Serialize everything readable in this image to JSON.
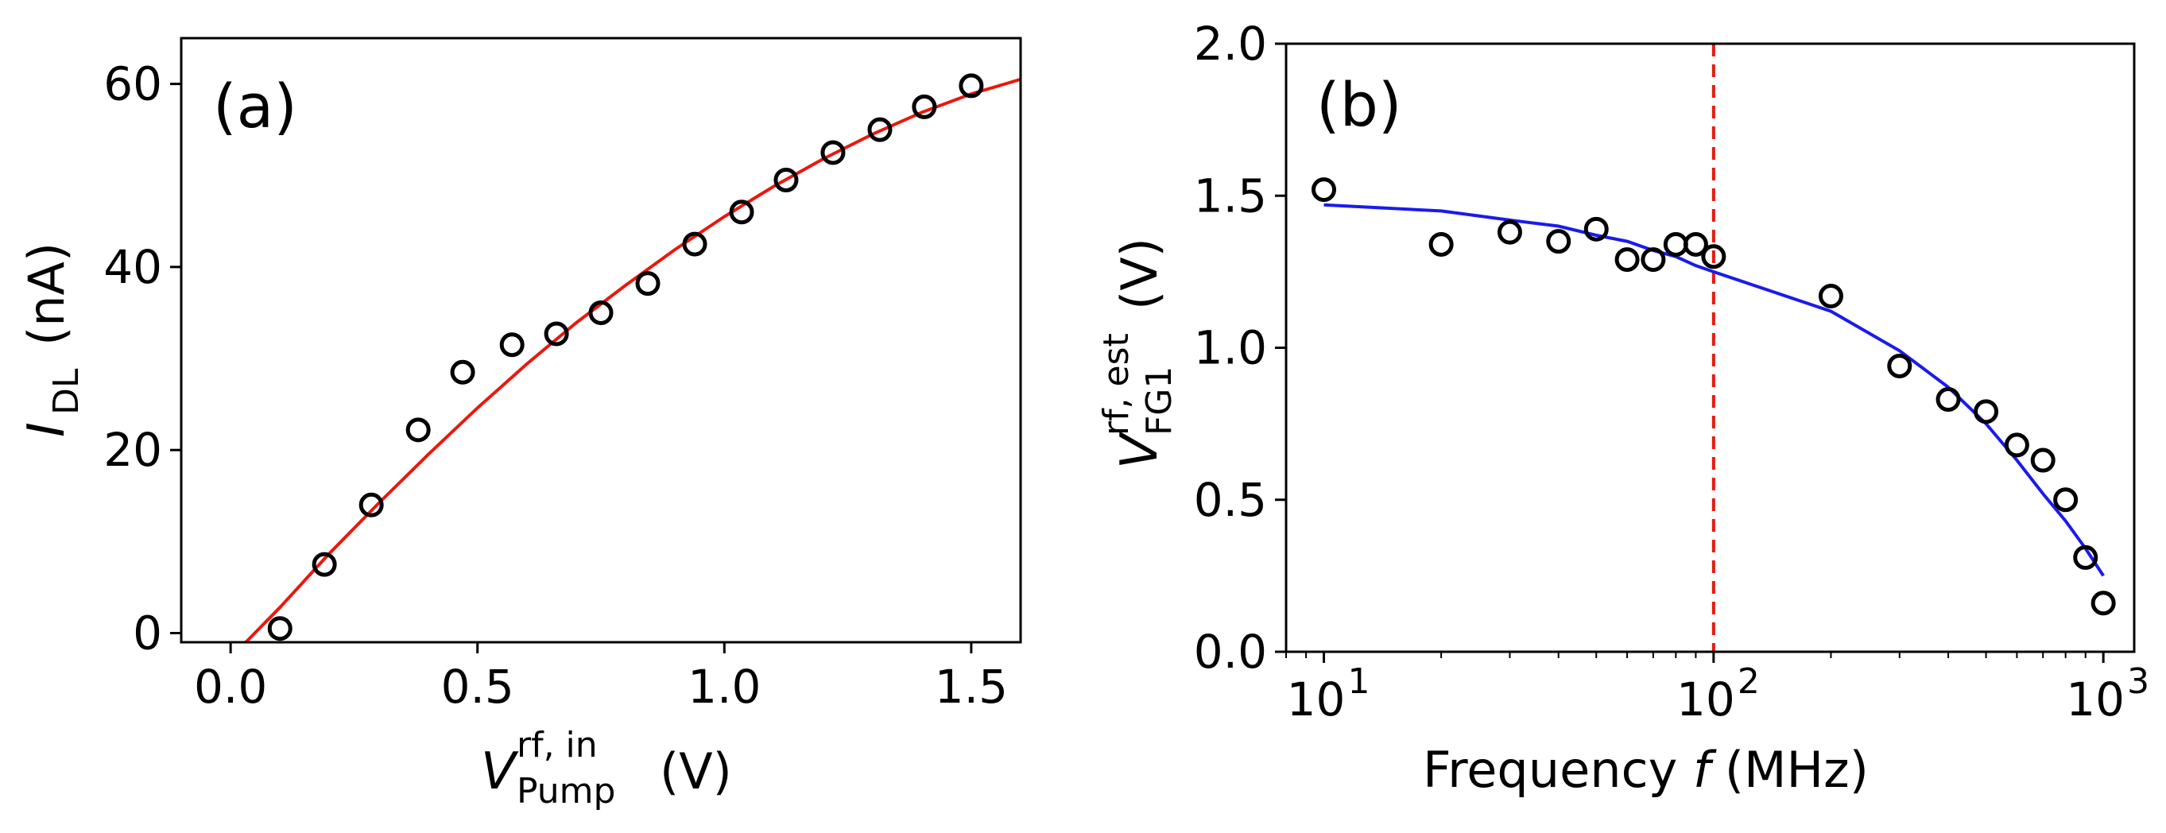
{
  "chart_data": [
    {
      "panel_label": "(a)",
      "type": "scatter",
      "xlabel": {
        "main": "V",
        "sup": "rf, in",
        "sub": "Pump",
        "unit": "(V)"
      },
      "ylabel": {
        "main": "I",
        "sub": "DL",
        "unit": "(nA)"
      },
      "xlim": [
        -0.1,
        1.6
      ],
      "ylim": [
        -1,
        65
      ],
      "xticks": [
        0.0,
        0.5,
        1.0,
        1.5
      ],
      "xtick_labels": [
        "0.0",
        "0.5",
        "1.0",
        "1.5"
      ],
      "yticks": [
        0,
        20,
        40,
        60
      ],
      "ytick_labels": [
        "0",
        "20",
        "40",
        "60"
      ],
      "points": {
        "x": [
          0.1,
          0.19,
          0.285,
          0.38,
          0.47,
          0.57,
          0.66,
          0.75,
          0.845,
          0.94,
          1.035,
          1.125,
          1.22,
          1.315,
          1.405,
          1.5
        ],
        "y": [
          0.5,
          7.5,
          14,
          22.2,
          28.5,
          31.5,
          32.7,
          35,
          38.2,
          42.5,
          46,
          49.5,
          52.5,
          55,
          57.5,
          59.8
        ]
      },
      "fit": {
        "color": "#e8190e",
        "x": [
          0.02,
          0.1,
          0.2,
          0.3,
          0.4,
          0.5,
          0.6,
          0.7,
          0.8,
          0.9,
          1.0,
          1.1,
          1.2,
          1.3,
          1.4,
          1.5,
          1.6
        ],
        "y": [
          -1.6,
          2.8,
          8.7,
          14.2,
          19.5,
          24.6,
          29.4,
          33.9,
          38.0,
          41.9,
          45.5,
          48.8,
          51.8,
          54.5,
          56.9,
          58.9,
          60.5
        ]
      }
    },
    {
      "panel_label": "(b)",
      "type": "scatter",
      "xscale": "log",
      "xlabel": {
        "main": "Frequency ",
        "italic": "f",
        "unit": "(MHz)"
      },
      "ylabel": {
        "main": "V",
        "sup": "rf, est",
        "sub": "FG1",
        "unit": "(V)"
      },
      "xlim": [
        8,
        1200
      ],
      "ylim": [
        0.0,
        2.0
      ],
      "xticks": [
        10,
        100,
        1000
      ],
      "xtick_base": [
        "10",
        "10",
        "10"
      ],
      "xtick_exp": [
        "1",
        "2",
        "3"
      ],
      "yticks": [
        0.0,
        0.5,
        1.0,
        1.5,
        2.0
      ],
      "ytick_labels": [
        "0.0",
        "0.5",
        "1.0",
        "1.5",
        "2.0"
      ],
      "points": {
        "x": [
          10,
          20,
          30,
          40,
          50,
          60,
          70,
          80,
          90,
          100,
          200,
          300,
          400,
          500,
          600,
          700,
          800,
          900,
          1000
        ],
        "y": [
          1.52,
          1.34,
          1.38,
          1.35,
          1.39,
          1.29,
          1.29,
          1.34,
          1.34,
          1.3,
          1.17,
          0.94,
          0.83,
          0.79,
          0.68,
          0.63,
          0.5,
          0.31,
          0.16
        ]
      },
      "fit": {
        "color": "#1a1aee",
        "x": [
          10,
          20,
          30,
          40,
          50,
          60,
          70,
          80,
          90,
          100,
          200,
          300,
          400,
          500,
          600,
          700,
          800,
          900,
          1000
        ],
        "y": [
          1.47,
          1.45,
          1.42,
          1.4,
          1.37,
          1.35,
          1.32,
          1.3,
          1.27,
          1.25,
          1.12,
          0.99,
          0.87,
          0.75,
          0.63,
          0.52,
          0.43,
          0.34,
          0.25
        ]
      },
      "vline": {
        "x": 100,
        "color": "#e8190e",
        "style": "dashed"
      }
    }
  ]
}
